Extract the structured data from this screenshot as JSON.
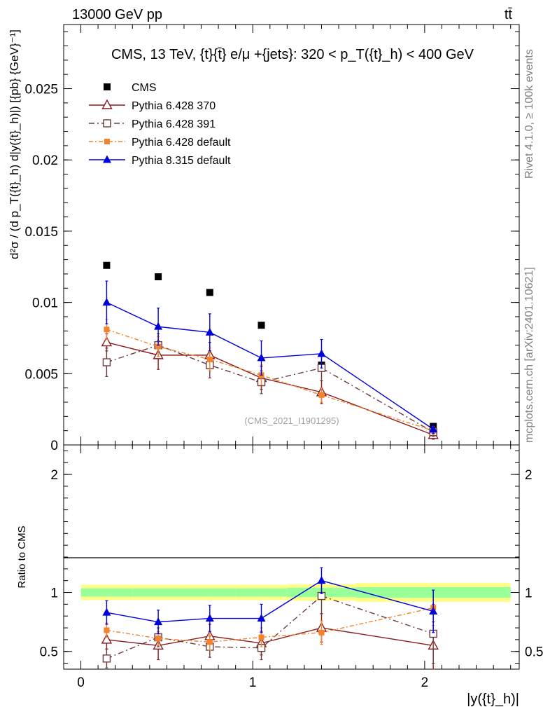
{
  "header": {
    "left": "13000 GeV pp",
    "right": "tt̄"
  },
  "side_labels": {
    "rivet": "Rivet 4.1.0, ≥ 100k events",
    "mcplots": "mcplots.cern.ch [arXiv:2401.10621]"
  },
  "colors": {
    "cms": "#000000",
    "p370": "#8b1a1a",
    "p391": "#6b3a3a",
    "p6def": "#f5822a",
    "p8def": "#0000dd",
    "band_inner": "#99ff99",
    "band_outer": "#ffff88"
  },
  "chart_data": [
    {
      "type": "line",
      "title": "CMS, 13 TeV, {t}{t̄} e/μ +{jets}: 320 <  p_T({t}_h) < 400 GeV",
      "ylabel": "d²σ / (d p_T({t}_h) d|y({t}_h)|)  [{pb} {GeV}⁻¹]",
      "xlabel": "|y({t}_h)|",
      "watermark": "(CMS_2021_I1901295)",
      "xlim": [
        -0.1,
        2.55
      ],
      "ylim": [
        0,
        0.0295
      ],
      "yticks": [
        {
          "v": 0,
          "label": "0"
        },
        {
          "v": 0.005,
          "label": "0.005"
        },
        {
          "v": 0.01,
          "label": "0.01"
        },
        {
          "v": 0.015,
          "label": "0.015"
        },
        {
          "v": 0.02,
          "label": "0.02"
        },
        {
          "v": 0.025,
          "label": "0.025"
        }
      ],
      "x": [
        0.15,
        0.45,
        0.75,
        1.05,
        1.4,
        2.05
      ],
      "series": [
        {
          "name": "CMS",
          "key": "cms",
          "marker": "square-filled",
          "dash": "none",
          "values": [
            0.0126,
            0.0118,
            0.0107,
            0.0084,
            0.0056,
            0.0013
          ],
          "errors": [
            0,
            0,
            0,
            0,
            0,
            0
          ]
        },
        {
          "name": "Pythia 6.428 370",
          "key": "p370",
          "marker": "triangle-open",
          "dash": "solid",
          "values": [
            0.0072,
            0.0063,
            0.0063,
            0.0047,
            0.0037,
            0.0007
          ],
          "errors": [
            0.0006,
            0.001,
            0.0009,
            0.0008,
            0.0008,
            0.0003
          ]
        },
        {
          "name": "Pythia 6.428 391",
          "key": "p391",
          "marker": "square-open",
          "dash": "dashdot",
          "values": [
            0.0058,
            0.007,
            0.0056,
            0.0044,
            0.0054,
            0.0009
          ],
          "errors": [
            0.001,
            0.0008,
            0.0009,
            0.0008,
            0.0009,
            0.0003
          ]
        },
        {
          "name": "Pythia 6.428 default",
          "key": "p6def",
          "marker": "square-small",
          "dash": "dashdot2",
          "values": [
            0.0081,
            0.0069,
            0.006,
            0.0049,
            0.0035,
            0.001
          ],
          "errors": [
            0.0007,
            0.0007,
            0.0008,
            0.0007,
            0.0005,
            0.0003
          ]
        },
        {
          "name": "Pythia 8.315 default",
          "key": "p8def",
          "marker": "triangle-filled",
          "dash": "solid",
          "values": [
            0.01,
            0.0083,
            0.0079,
            0.0061,
            0.0064,
            0.0011
          ],
          "errors": [
            0.0015,
            0.0013,
            0.0013,
            0.0012,
            0.001,
            0.0003
          ]
        }
      ]
    },
    {
      "type": "line",
      "title": "",
      "ylabel": "Ratio to CMS",
      "xlabel": "|y({t}_h)|",
      "xlim": [
        -0.1,
        2.55
      ],
      "ylim": [
        0.35,
        2.25
      ],
      "yticks": [
        {
          "v": 0.5,
          "label": "0.5"
        },
        {
          "v": 1,
          "label": "1"
        },
        {
          "v": 2,
          "label": "2"
        }
      ],
      "xticks": [
        {
          "v": 0,
          "label": "0"
        },
        {
          "v": 1,
          "label": "1"
        },
        {
          "v": 2,
          "label": "2"
        }
      ],
      "x": [
        0.15,
        0.45,
        0.75,
        1.05,
        1.4,
        2.05
      ],
      "bins": [
        0.0,
        0.3,
        0.6,
        0.9,
        1.2,
        1.6,
        2.5
      ],
      "band_inner_halfwidth": [
        0.035,
        0.035,
        0.035,
        0.035,
        0.04,
        0.045
      ],
      "band_outer_halfwidth": [
        0.065,
        0.065,
        0.065,
        0.065,
        0.07,
        0.08
      ],
      "series": [
        {
          "name": "Pythia 6.428 370",
          "key": "p370",
          "marker": "triangle-open",
          "dash": "solid",
          "values": [
            0.6,
            0.55,
            0.63,
            0.57,
            0.7,
            0.55
          ],
          "errors": [
            0.08,
            0.12,
            0.1,
            0.1,
            0.12,
            0.2
          ]
        },
        {
          "name": "Pythia 6.428 391",
          "key": "p391",
          "marker": "square-open",
          "dash": "dashdot",
          "values": [
            0.44,
            0.62,
            0.54,
            0.53,
            0.97,
            0.65
          ],
          "errors": [
            0.08,
            0.08,
            0.09,
            0.1,
            0.15,
            0.25
          ]
        },
        {
          "name": "Pythia 6.428 default",
          "key": "p6def",
          "marker": "square-small",
          "dash": "dashdot2",
          "values": [
            0.68,
            0.61,
            0.58,
            0.62,
            0.66,
            0.87
          ],
          "errors": [
            0.06,
            0.06,
            0.07,
            0.08,
            0.1,
            0.15
          ]
        },
        {
          "name": "Pythia 8.315 default",
          "key": "p8def",
          "marker": "triangle-filled",
          "dash": "solid",
          "values": [
            0.83,
            0.75,
            0.78,
            0.78,
            1.1,
            0.84
          ],
          "errors": [
            0.1,
            0.1,
            0.11,
            0.12,
            0.11,
            0.18
          ]
        }
      ]
    }
  ]
}
